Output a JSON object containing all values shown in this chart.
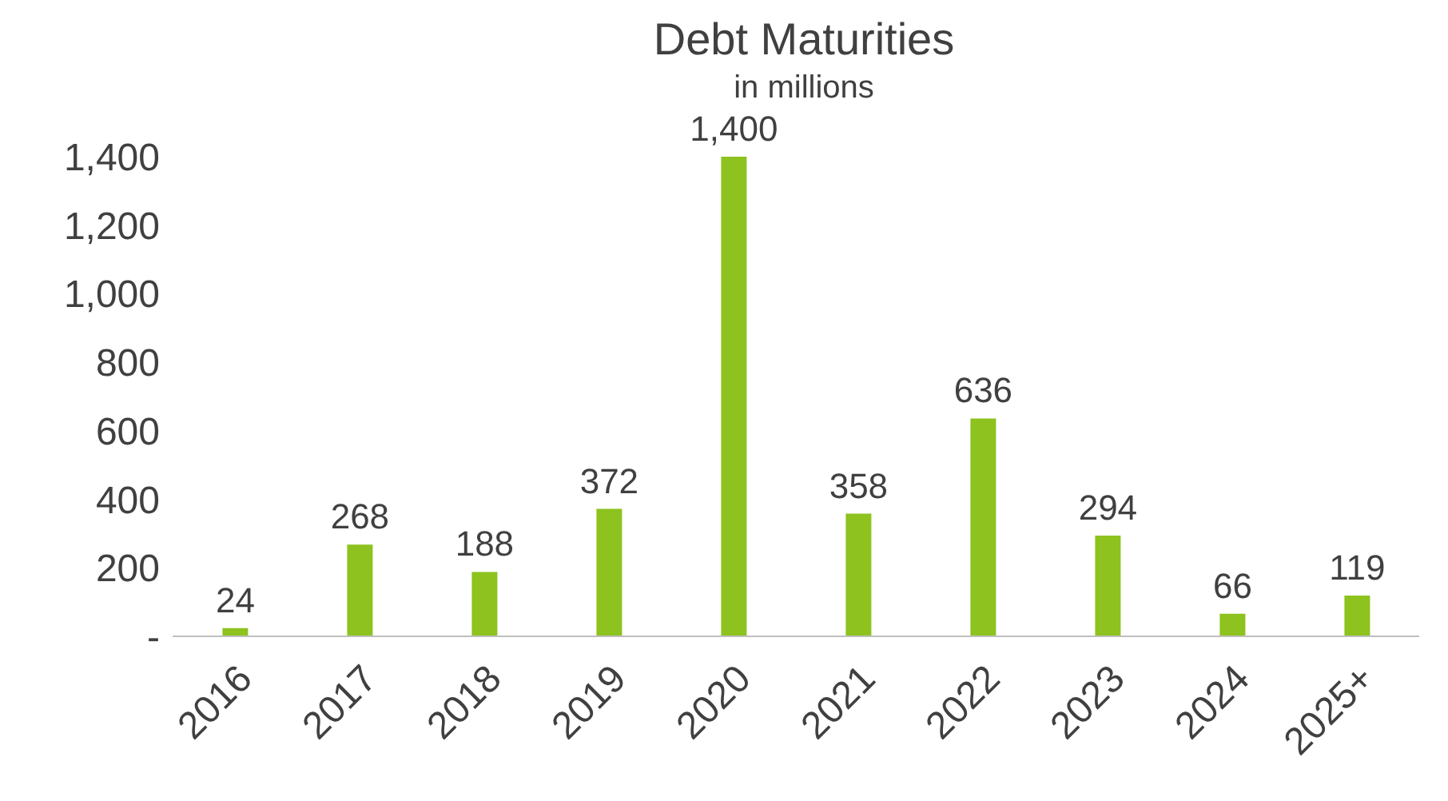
{
  "chart_data": {
    "type": "bar",
    "title": "Debt Maturities",
    "subtitle": "in millions",
    "categories": [
      "2016",
      "2017",
      "2018",
      "2019",
      "2020",
      "2021",
      "2022",
      "2023",
      "2024",
      "2025+"
    ],
    "values": [
      24,
      268,
      188,
      372,
      1400,
      358,
      636,
      294,
      66,
      119
    ],
    "color": "#8dc21f",
    "ylim": [
      0,
      1400
    ],
    "yticks": [
      {
        "value": 0,
        "label": "-"
      },
      200,
      400,
      600,
      800,
      {
        "value": 1000,
        "label": "1,000"
      },
      {
        "value": 1200,
        "label": "1,200"
      },
      {
        "value": 1400,
        "label": "1,400"
      }
    ],
    "value_labels": [
      "24",
      "268",
      "188",
      "372",
      "1,400",
      "358",
      "636",
      "294",
      "66",
      "119"
    ],
    "grid": false,
    "legend": false
  }
}
